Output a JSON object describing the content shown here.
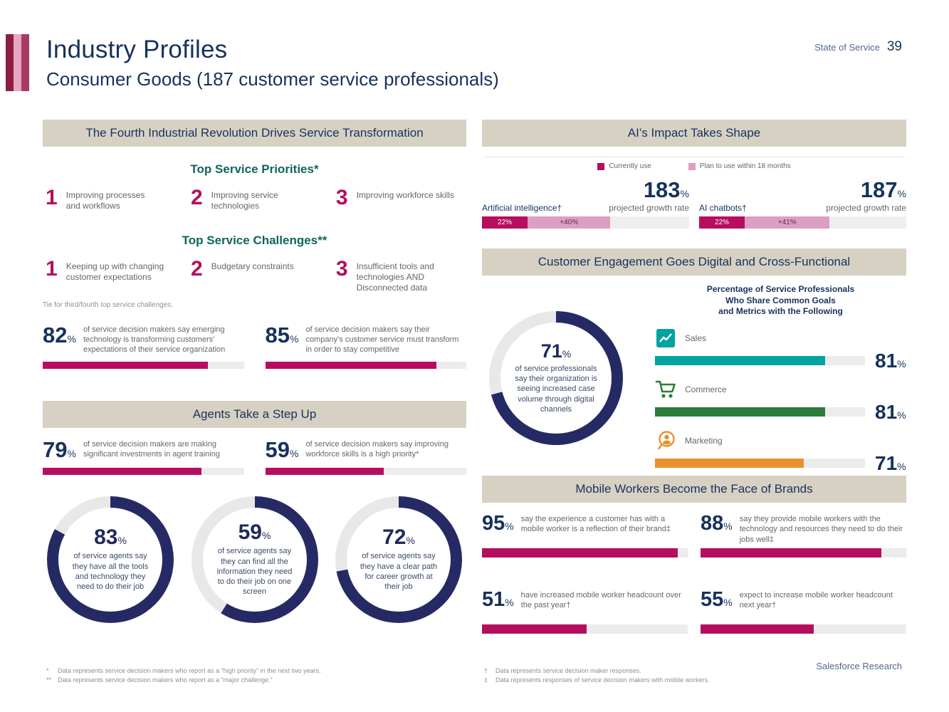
{
  "symbols": {
    "percent": "%"
  },
  "header": {
    "title": "Industry Profiles",
    "subtitle": "Consumer Goods (187 customer service professionals)",
    "report_name": "State of Service",
    "page_number": "39"
  },
  "transformation": {
    "title": "The Fourth Industrial Revolution Drives Service Transformation",
    "priorities_title": "Top Service Priorities*",
    "priorities": [
      {
        "rank": "1",
        "label": "Improving processes and workflows"
      },
      {
        "rank": "2",
        "label": "Improving service technologies"
      },
      {
        "rank": "3",
        "label": "Improving workforce skills"
      }
    ],
    "challenges_title": "Top Service Challenges**",
    "challenges": [
      {
        "rank": "1",
        "label": "Keeping up with changing customer expectations"
      },
      {
        "rank": "2",
        "label": "Budgetary constraints"
      },
      {
        "rank": "3",
        "label": "Insufficient tools and technologies AND Disconnected data"
      }
    ],
    "tie_note": "Tie for third/fourth top service challenges.",
    "stats": [
      {
        "value": "82",
        "text": "of service decision makers say emerging technology is transforming customers’ expectations of their service organization"
      },
      {
        "value": "85",
        "text": "of service decision makers say their company’s customer service must transform in order to stay competitive"
      }
    ]
  },
  "agents": {
    "title": "Agents Take a Step Up",
    "stats": [
      {
        "value": "79",
        "text": "of service decision makers are making significant investments in agent training"
      },
      {
        "value": "59",
        "text": "of service decision makers say improving workforce skills is a high priority*"
      }
    ],
    "donuts": [
      {
        "value": "83",
        "text": "of service agents say they have all the tools and technology they need to do their job"
      },
      {
        "value": "59",
        "text": "of service agents say they can find all the information they need to do their job on one screen"
      },
      {
        "value": "72",
        "text": "of service agents say they have a clear path for career growth at their job"
      }
    ]
  },
  "ai": {
    "title": "AI’s Impact Takes Shape",
    "legend": [
      {
        "label": "Currently use",
        "color": "#b60d5e"
      },
      {
        "label": "Plan to use within 18 months",
        "color": "#dc9ec2"
      }
    ],
    "charts": [
      {
        "growth": "183",
        "growth_label": "projected growth rate",
        "label": "Artificial intelligence†",
        "current_label": "22%",
        "current_pct": 22,
        "plan_label": "+40%",
        "plan_pct": 40
      },
      {
        "growth": "187",
        "growth_label": "projected growth rate",
        "label": "AI chatbots†",
        "current_label": "22%",
        "current_pct": 22,
        "plan_label": "+41%",
        "plan_pct": 41
      }
    ]
  },
  "engagement": {
    "title": "Customer Engagement Goes Digital and Cross-Functional",
    "donut": {
      "value": "71",
      "text": "of service professionals say their organization is seeing increased case volume through digital channels"
    },
    "share_title_line1": "Percentage of Service Professionals",
    "share_title_line2": "Who Share Common Goals",
    "share_title_line3": "and Metrics with the Following",
    "rows": [
      {
        "label": "Sales",
        "value": "81",
        "color": "#00a3a0",
        "icon": "bar-chart-icon"
      },
      {
        "label": "Commerce",
        "value": "81",
        "color": "#2e7d3a",
        "icon": "shopping-cart-icon"
      },
      {
        "label": "Marketing",
        "value": "71",
        "color": "#e8912c",
        "icon": "marketing-person-icon"
      }
    ]
  },
  "mobile": {
    "title": "Mobile Workers Become the Face of Brands",
    "stats": [
      {
        "value": "95",
        "text": "say the experience a customer has with a mobile worker is a reflection of their brand‡"
      },
      {
        "value": "88",
        "text": "say they provide mobile workers with the technology and resources they need to do their jobs well‡"
      },
      {
        "value": "51",
        "text": "have increased mobile worker headcount over the past year†"
      },
      {
        "value": "55",
        "text": "expect to increase mobile worker headcount next year†"
      }
    ]
  },
  "footnotes": {
    "left": [
      {
        "marker": "*",
        "text": "Data represents service decision makers who report as a “high priority” in the next two years."
      },
      {
        "marker": "**",
        "text": "Data represents service decision makers who report as a “major challenge.”"
      }
    ],
    "right": [
      {
        "marker": "†",
        "text": "Data represents service decision maker responses."
      },
      {
        "marker": "‡",
        "text": "Data represents responses of service decision makers with mobile workers."
      }
    ],
    "credit": "Salesforce Research"
  }
}
